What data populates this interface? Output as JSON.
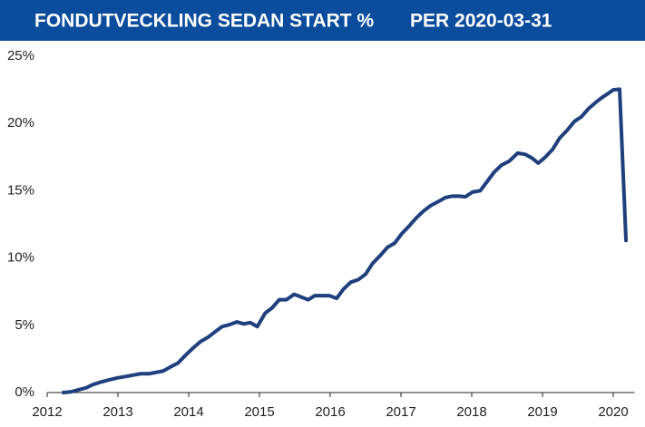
{
  "chart_data": {
    "type": "line",
    "title": "FONDUTVECKLING SEDAN START %",
    "subtitle": "PER 2020-03-31",
    "x": [
      2012.23,
      2012.33,
      2012.44,
      2012.55,
      2012.65,
      2012.77,
      2012.88,
      2013.0,
      2013.12,
      2013.22,
      2013.32,
      2013.44,
      2013.54,
      2013.64,
      2013.74,
      2013.85,
      2013.96,
      2014.06,
      2014.17,
      2014.27,
      2014.37,
      2014.47,
      2014.58,
      2014.68,
      2014.78,
      2014.87,
      2014.97,
      2015.08,
      2015.18,
      2015.28,
      2015.38,
      2015.49,
      2015.59,
      2015.69,
      2015.78,
      2015.88,
      2015.99,
      2016.09,
      2016.19,
      2016.29,
      2016.4,
      2016.5,
      2016.6,
      2016.71,
      2016.81,
      2016.91,
      2017.01,
      2017.12,
      2017.22,
      2017.32,
      2017.42,
      2017.53,
      2017.63,
      2017.73,
      2017.83,
      2017.91,
      2018.01,
      2018.12,
      2018.22,
      2018.32,
      2018.42,
      2018.53,
      2018.65,
      2018.76,
      2018.86,
      2018.94,
      2019.04,
      2019.14,
      2019.24,
      2019.35,
      2019.45,
      2019.55,
      2019.65,
      2019.76,
      2019.86,
      2019.92,
      2020.0,
      2020.09,
      2020.18
    ],
    "series": [
      {
        "color": "#1f3f7d",
        "values": [
          0,
          0.05,
          0.2,
          0.35,
          0.6,
          0.8,
          0.95,
          1.1,
          1.2,
          1.3,
          1.4,
          1.4,
          1.5,
          1.6,
          1.9,
          2.2,
          2.8,
          3.3,
          3.8,
          4.1,
          4.5,
          4.9,
          5.05,
          5.25,
          5.1,
          5.2,
          4.9,
          5.9,
          6.3,
          6.9,
          6.9,
          7.3,
          7.1,
          6.9,
          7.2,
          7.2,
          7.2,
          7.0,
          7.7,
          8.2,
          8.4,
          8.8,
          9.6,
          10.2,
          10.8,
          11.1,
          11.8,
          12.4,
          13.0,
          13.5,
          13.9,
          14.2,
          14.5,
          14.6,
          14.6,
          14.55,
          14.9,
          15.0,
          15.7,
          16.4,
          16.9,
          17.2,
          17.8,
          17.7,
          17.4,
          17.05,
          17.5,
          18.05,
          18.9,
          19.5,
          20.15,
          20.5,
          21.1,
          21.6,
          22.0,
          22.2,
          22.5,
          22.55,
          11.3
        ]
      }
    ],
    "xlim": [
      2012,
      2020.3
    ],
    "xticks": [
      2012,
      2013,
      2014,
      2015,
      2016,
      2017,
      2018,
      2019,
      2020
    ],
    "ylim": [
      0,
      25
    ],
    "yticks": [
      {
        "value": 0,
        "label": "0%"
      },
      {
        "value": 5,
        "label": "5%"
      },
      {
        "value": 10,
        "label": "10%"
      },
      {
        "value": 15,
        "label": "15%"
      },
      {
        "value": 20,
        "label": "20%"
      },
      {
        "value": 25,
        "label": "25%"
      }
    ],
    "grid": false
  }
}
